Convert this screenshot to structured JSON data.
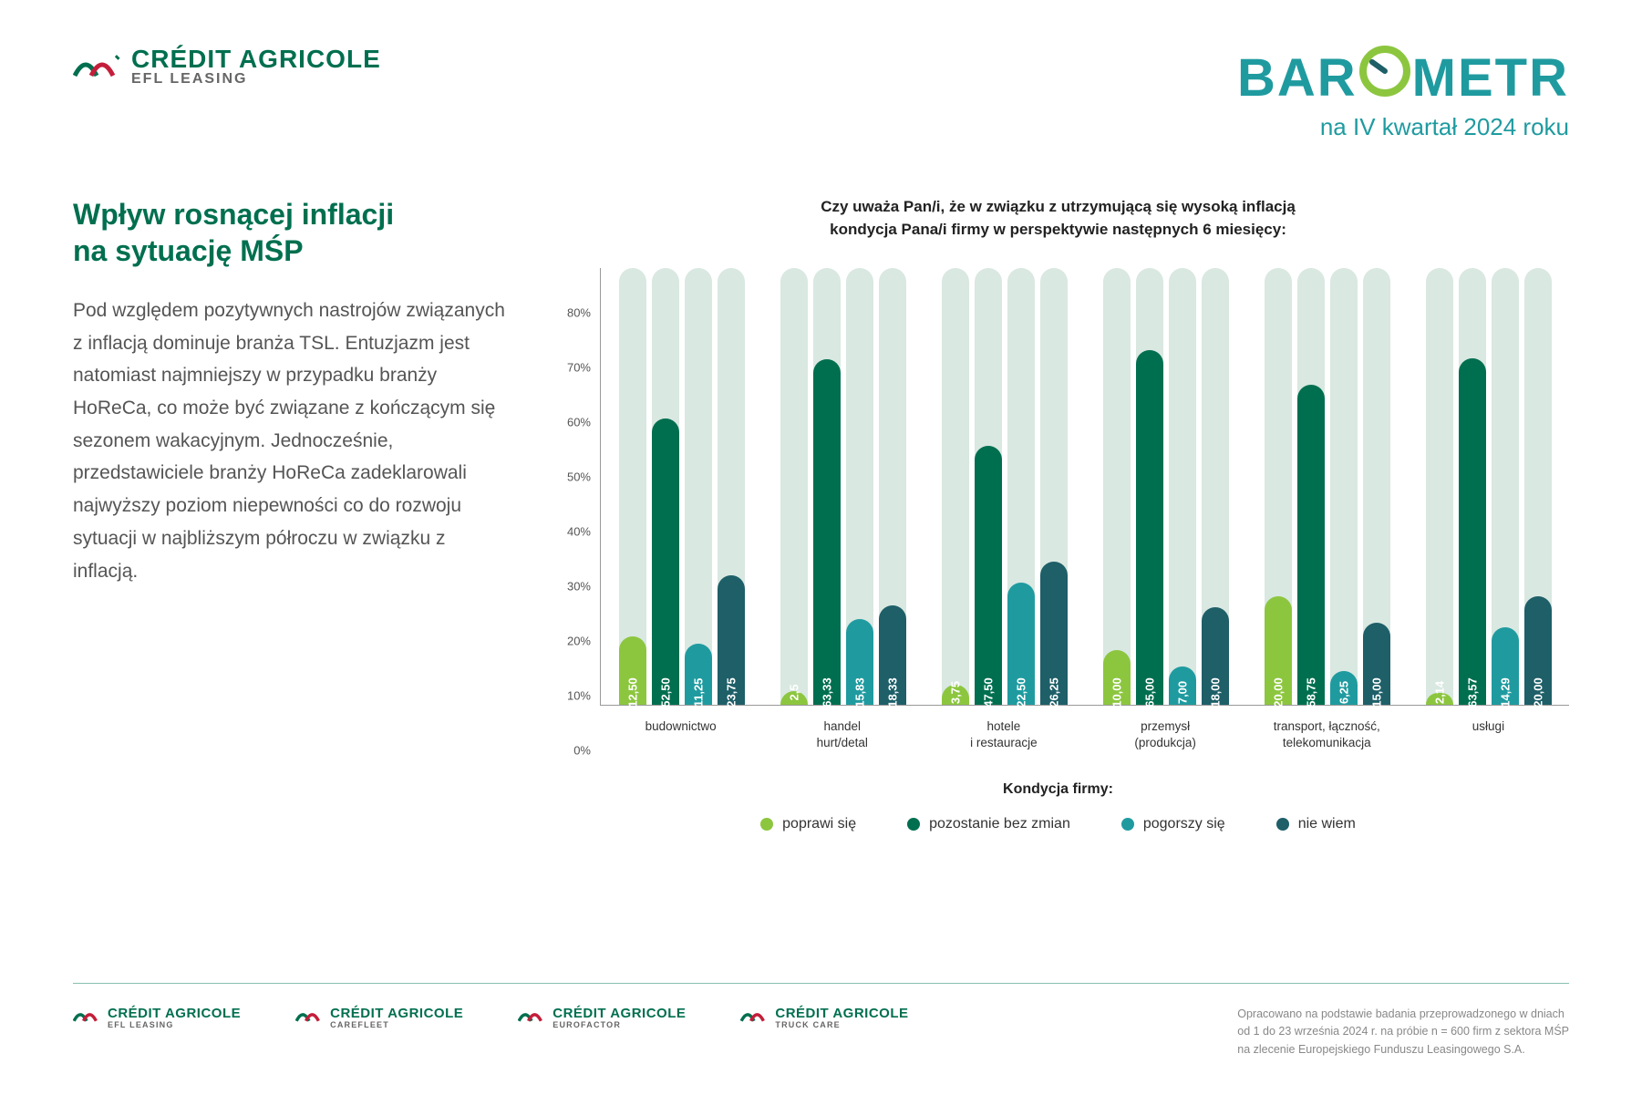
{
  "header": {
    "brand_top": "CRÉDIT AGRICOLE",
    "brand_bottom": "EFL LEASING",
    "barometr_word_pre": "BAR",
    "barometr_word_post": "METR",
    "barometr_sub": "na IV kwartał 2024 roku"
  },
  "left": {
    "title_l1": "Wpływ rosnącej inflacji",
    "title_l2": "na sytuację MŚP",
    "body": "Pod względem pozytywnych nastrojów związanych z inflacją dominuje branża TSL. Entuzjazm jest natomiast najmniejszy w przypadku branży HoReCa, co może być związane z kończącym się sezonem wakacyjnym. Jednocześnie, przedstawiciele branży HoReCa zadeklarowali najwyższy poziom niepewności co do rozwoju sytuacji w najbliższym półroczu w związku z inflacją."
  },
  "chart": {
    "title_l1": "Czy uważa Pan/i, że w związku z utrzymującą się wysoką inflacją",
    "title_l2": "kondycja Pana/i firmy w perspektywie następnych 6 miesięcy:",
    "ymax": 80,
    "ytick_step": 10,
    "bg_bar_color": "#d9e8e1",
    "axis_color": "#999999",
    "grid_color": "#e0e0e0",
    "series": [
      {
        "key": "poprawi",
        "label": "poprawi się",
        "color": "#8cc63f"
      },
      {
        "key": "bez_zmian",
        "label": "pozostanie bez zmian",
        "color": "#006f4f"
      },
      {
        "key": "pogorszy",
        "label": "pogorszy się",
        "color": "#1f9ba0"
      },
      {
        "key": "nie_wiem",
        "label": "nie wiem",
        "color": "#1e5f68"
      }
    ],
    "categories": [
      {
        "label_l1": "budownictwo",
        "label_l2": "",
        "values": {
          "poprawi": "12,50",
          "bez_zmian": "52,50",
          "pogorszy": "11,25",
          "nie_wiem": "23,75"
        }
      },
      {
        "label_l1": "handel",
        "label_l2": "hurt/detal",
        "values": {
          "poprawi": "2,5",
          "bez_zmian": "63,33",
          "pogorszy": "15,83",
          "nie_wiem": "18,33"
        }
      },
      {
        "label_l1": "hotele",
        "label_l2": "i restauracje",
        "values": {
          "poprawi": "3,75",
          "bez_zmian": "47,50",
          "pogorszy": "22,50",
          "nie_wiem": "26,25"
        }
      },
      {
        "label_l1": "przemysł",
        "label_l2": "(produkcja)",
        "values": {
          "poprawi": "10,00",
          "bez_zmian": "65,00",
          "pogorszy": "7,00",
          "nie_wiem": "18,00"
        }
      },
      {
        "label_l1": "transport, łączność,",
        "label_l2": "telekomunikacja",
        "values": {
          "poprawi": "20,00",
          "bez_zmian": "58,75",
          "pogorszy": "6,25",
          "nie_wiem": "15,00"
        }
      },
      {
        "label_l1": "usługi",
        "label_l2": "",
        "values": {
          "poprawi": "2,14",
          "bez_zmian": "63,57",
          "pogorszy": "14,29",
          "nie_wiem": "20,00"
        }
      }
    ],
    "legend_title": "Kondycja firmy:"
  },
  "footer": {
    "logos": [
      {
        "top": "CRÉDIT AGRICOLE",
        "bot": "EFL LEASING"
      },
      {
        "top": "CRÉDIT AGRICOLE",
        "bot": "CAREFLEET"
      },
      {
        "top": "CRÉDIT AGRICOLE",
        "bot": "EUROFACTOR"
      },
      {
        "top": "CRÉDIT AGRICOLE",
        "bot": "TRUCK CARE"
      }
    ],
    "note_l1": "Opracowano na podstawie badania przeprowadzonego w dniach",
    "note_l2": "od 1 do 23 września 2024 r. na próbie n = 600 firm z sektora MŚP",
    "note_l3": "na zlecenie Europejskiego Funduszu Leasingowego S.A."
  }
}
